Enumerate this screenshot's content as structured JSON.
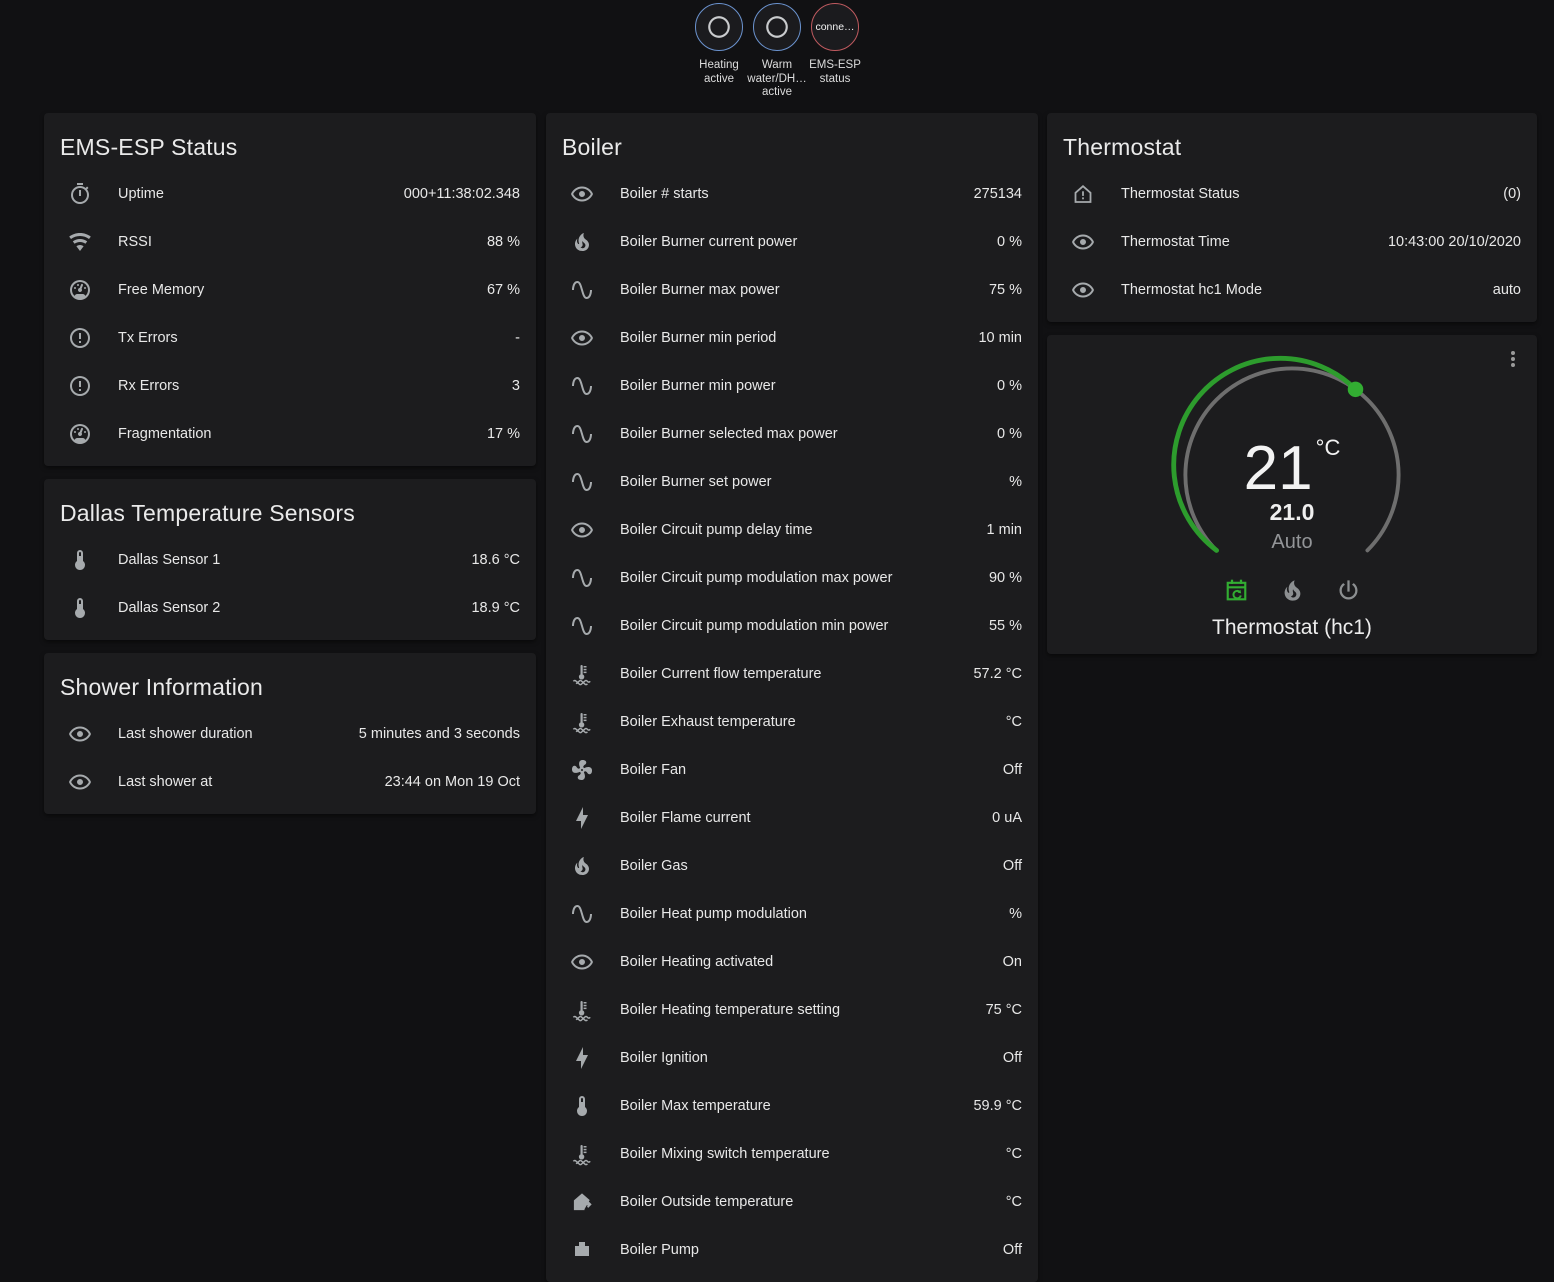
{
  "colors": {
    "accent_green": "#2d9c2d",
    "accent_green_bright": "#32ad32",
    "badge_blue": "#6b93cf",
    "badge_red": "#bf5a5f"
  },
  "badges": [
    {
      "name": "badge-heating-active",
      "icon": "circle-outline",
      "label": "Heating active",
      "color": "#6b93cf"
    },
    {
      "name": "badge-warm-water-active",
      "icon": "circle-outline",
      "label": "Warm water/DH… active",
      "color": "#6b93cf"
    },
    {
      "name": "badge-ems-esp-status",
      "text": "conne…",
      "label": "EMS-ESP status",
      "color": "#bf5a5f"
    }
  ],
  "cards": {
    "ems_status": {
      "title": "EMS-ESP Status",
      "rows": [
        {
          "icon": "timer-outline",
          "label": "Uptime",
          "value": "000+11:38:02.348"
        },
        {
          "icon": "wifi",
          "label": "RSSI",
          "value": "88 %"
        },
        {
          "icon": "gauge",
          "label": "Free Memory",
          "value": "67 %"
        },
        {
          "icon": "alert-circle",
          "label": "Tx Errors",
          "value": "-"
        },
        {
          "icon": "alert-circle",
          "label": "Rx Errors",
          "value": "3"
        },
        {
          "icon": "gauge",
          "label": "Fragmentation",
          "value": "17 %"
        }
      ]
    },
    "dallas": {
      "title": "Dallas Temperature Sensors",
      "rows": [
        {
          "icon": "thermometer",
          "label": "Dallas Sensor 1",
          "value": "18.6 °C"
        },
        {
          "icon": "thermometer",
          "label": "Dallas Sensor 2",
          "value": "18.9 °C"
        }
      ]
    },
    "shower": {
      "title": "Shower Information",
      "rows": [
        {
          "icon": "eye",
          "label": "Last shower duration",
          "value": "5 minutes and 3 seconds"
        },
        {
          "icon": "eye",
          "label": "Last shower at",
          "value": "23:44 on Mon 19 Oct"
        }
      ]
    },
    "boiler": {
      "title": "Boiler",
      "rows": [
        {
          "icon": "eye",
          "label": "Boiler # starts",
          "value": "275134"
        },
        {
          "icon": "fire",
          "label": "Boiler Burner current power",
          "value": "0 %"
        },
        {
          "icon": "sine-wave",
          "label": "Boiler Burner max power",
          "value": "75 %"
        },
        {
          "icon": "eye",
          "label": "Boiler Burner min period",
          "value": "10 min"
        },
        {
          "icon": "sine-wave",
          "label": "Boiler Burner min power",
          "value": "0 %"
        },
        {
          "icon": "sine-wave",
          "label": "Boiler Burner selected max power",
          "value": "0 %"
        },
        {
          "icon": "sine-wave",
          "label": "Boiler Burner set power",
          "value": "%"
        },
        {
          "icon": "eye",
          "label": "Boiler Circuit pump delay time",
          "value": "1 min"
        },
        {
          "icon": "sine-wave",
          "label": "Boiler Circuit pump modulation max power",
          "value": "90 %"
        },
        {
          "icon": "sine-wave",
          "label": "Boiler Circuit pump modulation min power",
          "value": "55 %"
        },
        {
          "icon": "coolant-thermometer",
          "label": "Boiler Current flow temperature",
          "value": "57.2 °C"
        },
        {
          "icon": "coolant-thermometer",
          "label": "Boiler Exhaust temperature",
          "value": "°C"
        },
        {
          "icon": "fan",
          "label": "Boiler Fan",
          "value": "Off"
        },
        {
          "icon": "lightning-bolt",
          "label": "Boiler Flame current",
          "value": "0 uA"
        },
        {
          "icon": "fire",
          "label": "Boiler Gas",
          "value": "Off"
        },
        {
          "icon": "sine-wave",
          "label": "Boiler Heat pump modulation",
          "value": "%"
        },
        {
          "icon": "eye",
          "label": "Boiler Heating activated",
          "value": "On"
        },
        {
          "icon": "coolant-thermometer",
          "label": "Boiler Heating temperature setting",
          "value": "75 °C"
        },
        {
          "icon": "lightning-bolt",
          "label": "Boiler Ignition",
          "value": "Off"
        },
        {
          "icon": "thermometer",
          "label": "Boiler Max temperature",
          "value": "59.9 °C"
        },
        {
          "icon": "coolant-thermometer",
          "label": "Boiler Mixing switch temperature",
          "value": "°C"
        },
        {
          "icon": "home-export",
          "label": "Boiler Outside temperature",
          "value": "°C"
        },
        {
          "icon": "pump",
          "label": "Boiler Pump",
          "value": "Off"
        }
      ]
    },
    "thermostat_info": {
      "title": "Thermostat",
      "rows": [
        {
          "icon": "home-alert",
          "label": "Thermostat Status",
          "value": "(0)"
        },
        {
          "icon": "eye",
          "label": "Thermostat Time",
          "value": "10:43:00 20/10/2020"
        },
        {
          "icon": "eye",
          "label": "Thermostat hc1 Mode",
          "value": "auto"
        }
      ]
    }
  },
  "thermostat_dial": {
    "current_temp": "21",
    "unit": "°C",
    "setpoint": "21.0",
    "mode_label": "Auto",
    "name": "Thermostat (hc1)",
    "modes": [
      {
        "name": "mode-auto",
        "icon": "calendar-sync",
        "active": true
      },
      {
        "name": "mode-heat",
        "icon": "fire",
        "active": false
      },
      {
        "name": "mode-off",
        "icon": "power",
        "active": false
      }
    ]
  }
}
